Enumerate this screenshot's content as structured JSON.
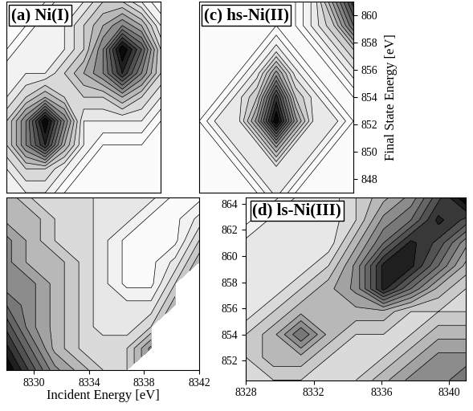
{
  "chart_data": [
    {
      "type": "contour",
      "title": "(a) Ni(I)",
      "tick_labels": false,
      "x": [
        8328,
        8329.5,
        8331,
        8332.5,
        8334,
        8335.5,
        8337,
        8338.5,
        8340
      ],
      "y": [
        848,
        849.5,
        851,
        852.5,
        854,
        855.5,
        857,
        858.5,
        860
      ],
      "xlim": [
        8328,
        8340
      ],
      "ylim": [
        848,
        860
      ],
      "cells": [
        [
          3,
          3,
          3,
          2,
          2,
          2,
          2,
          2,
          2
        ],
        [
          3,
          4,
          4,
          3,
          2,
          2,
          2,
          2,
          2
        ],
        [
          4,
          6,
          8,
          5,
          3,
          2,
          2,
          2,
          2
        ],
        [
          4,
          6,
          9,
          6,
          3,
          3,
          3,
          3,
          2
        ],
        [
          3,
          4,
          5,
          4,
          4,
          4,
          5,
          4,
          3
        ],
        [
          3,
          3,
          3,
          4,
          5,
          6,
          8,
          6,
          4
        ],
        [
          2,
          3,
          3,
          3,
          4,
          6,
          9,
          7,
          4
        ],
        [
          2,
          2,
          3,
          3,
          4,
          5,
          6,
          5,
          3
        ],
        [
          2,
          2,
          2,
          3,
          3,
          4,
          4,
          3,
          2
        ]
      ]
    },
    {
      "type": "contour",
      "title": "(c) hs-Ni(II)",
      "tick_labels": "y",
      "ylabel": "Final State Energy [eV]",
      "x": [
        8328,
        8329.5,
        8331,
        8332.5,
        8334,
        8335.5,
        8337,
        8338.5,
        8340
      ],
      "y": [
        847,
        848.75,
        850.5,
        852.25,
        854,
        855.75,
        857.5,
        859.25,
        861
      ],
      "xlim": [
        8328,
        8340
      ],
      "ylim": [
        847,
        861
      ],
      "yticks": [
        848,
        850,
        852,
        854,
        856,
        858,
        860
      ],
      "cells": [
        [
          4,
          4,
          4,
          4,
          5,
          4,
          4,
          4,
          4
        ],
        [
          4,
          4,
          4,
          5,
          5,
          5,
          4,
          4,
          4
        ],
        [
          4,
          4,
          5,
          5,
          7,
          5,
          5,
          4,
          4
        ],
        [
          4,
          5,
          5,
          7,
          10,
          7,
          5,
          5,
          4
        ],
        [
          4,
          4,
          5,
          6,
          9,
          6,
          5,
          4,
          4
        ],
        [
          4,
          4,
          4,
          5,
          7,
          5,
          4,
          4,
          5
        ],
        [
          4,
          4,
          4,
          4,
          5,
          4,
          4,
          5,
          6
        ],
        [
          4,
          4,
          4,
          4,
          4,
          4,
          5,
          6,
          8
        ],
        [
          4,
          4,
          4,
          4,
          4,
          4,
          5,
          7,
          9
        ]
      ]
    },
    {
      "type": "contour",
      "tick_labels": "x",
      "xlabel": "Incident Energy [eV]",
      "x": [
        8328,
        8329.75,
        8331.5,
        8333.25,
        8335,
        8336.75,
        8338.5,
        8340.25,
        8342
      ],
      "y": [
        850,
        851.75,
        853.5,
        855.25,
        857,
        858.75,
        860.5,
        862.25,
        864
      ],
      "xlim": [
        8328,
        8342
      ],
      "ylim": [
        850,
        864
      ],
      "xticks": [
        8330,
        8334,
        8338,
        8342
      ],
      "cells": [
        [
          9,
          7,
          5,
          4,
          3,
          3,
          null,
          null,
          null
        ],
        [
          8,
          6,
          4,
          3,
          3,
          3,
          5,
          null,
          null
        ],
        [
          7,
          5,
          4,
          3,
          2,
          2,
          3,
          null,
          null
        ],
        [
          6,
          5,
          4,
          3,
          2,
          2,
          2,
          4,
          null
        ],
        [
          5,
          5,
          4,
          3,
          2,
          1,
          1,
          3,
          null
        ],
        [
          5,
          4,
          4,
          3,
          2,
          1,
          1,
          2,
          4
        ],
        [
          5,
          4,
          3,
          3,
          2,
          1,
          1,
          1,
          3
        ],
        [
          4,
          4,
          3,
          3,
          2,
          2,
          1,
          1,
          2
        ],
        [
          4,
          3,
          3,
          3,
          2,
          2,
          2,
          1,
          1
        ]
      ]
    },
    {
      "type": "contour",
      "title": "(d) ls-Ni(III)",
      "tick_labels": true,
      "x": [
        8328,
        8329.625,
        8331.25,
        8332.875,
        8334.5,
        8336.125,
        8337.75,
        8339.375,
        8341
      ],
      "y": [
        850.5,
        852.25,
        854,
        855.75,
        857.5,
        859.25,
        861,
        862.75,
        864.5
      ],
      "xlim": [
        8328,
        8341
      ],
      "ylim": [
        850.5,
        864.5
      ],
      "xticks": [
        8328,
        8332,
        8336,
        8340
      ],
      "yticks": [
        852,
        854,
        856,
        858,
        860,
        862,
        864
      ],
      "cells": [
        [
          3,
          3,
          3,
          3,
          3,
          4,
          5,
          5,
          6
        ],
        [
          3,
          4,
          4,
          3,
          3,
          3,
          4,
          5,
          5
        ],
        [
          3,
          4,
          6,
          4,
          3,
          3,
          3,
          4,
          4
        ],
        [
          2,
          3,
          4,
          4,
          4,
          4,
          3,
          3,
          3
        ],
        [
          2,
          2,
          3,
          4,
          5,
          8,
          6,
          4,
          3
        ],
        [
          2,
          2,
          2,
          3,
          5,
          8,
          8,
          6,
          4
        ],
        [
          2,
          2,
          2,
          2,
          4,
          6,
          8,
          7,
          5
        ],
        [
          1,
          2,
          2,
          2,
          3,
          5,
          6,
          8,
          7
        ],
        [
          1,
          1,
          2,
          2,
          3,
          4,
          5,
          7,
          9
        ]
      ]
    }
  ]
}
